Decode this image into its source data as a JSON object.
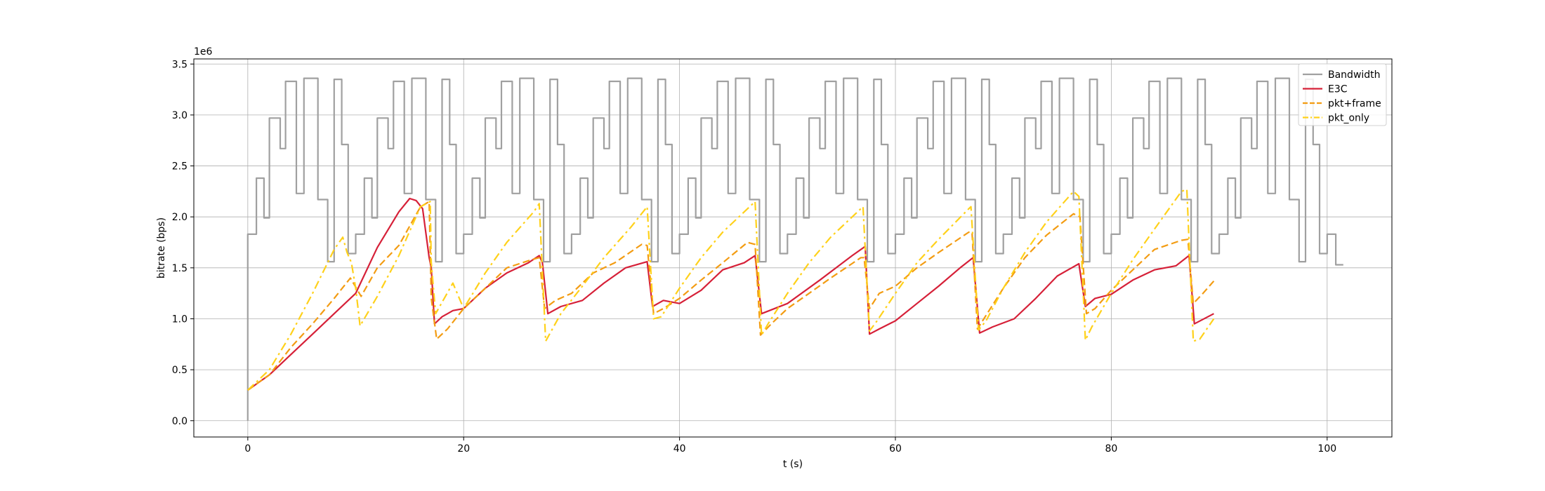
{
  "chart_data": {
    "type": "line",
    "xlabel": "t (s)",
    "ylabel": "bitrate (bps)",
    "y_offset_label": "1e6",
    "xlim": [
      -5,
      106
    ],
    "ylim": [
      -0.16,
      3.55
    ],
    "xticks": [
      0,
      20,
      40,
      60,
      80,
      100
    ],
    "yticks": [
      0.0,
      0.5,
      1.0,
      1.5,
      2.0,
      2.5,
      3.0,
      3.5
    ],
    "xtick_labels": [
      "0",
      "20",
      "40",
      "60",
      "80",
      "100"
    ],
    "ytick_labels": [
      "0.0",
      "0.5",
      "1.0",
      "1.5",
      "2.0",
      "2.5",
      "3.0",
      "3.5"
    ],
    "grid": true,
    "legend_position": "top-right",
    "series": [
      {
        "name": "Bandwidth",
        "color": "#a0a0a0",
        "style": "solid",
        "step": true,
        "pattern_period": 10,
        "pattern_times": [
          0,
          0.8,
          1.5,
          2.0,
          3.0,
          3.5,
          4.5,
          5.2,
          6.5,
          7.4,
          8.0,
          8.7,
          9.3
        ],
        "pattern_values": [
          1.83,
          2.38,
          1.99,
          2.97,
          2.67,
          3.33,
          2.23,
          3.36,
          2.17,
          1.56,
          3.35,
          2.71,
          1.64
        ],
        "end_time": 100.8,
        "end_value": 1.53
      },
      {
        "name": "E3C",
        "color": "#d62038",
        "style": "solid",
        "x": [
          0,
          2,
          4,
          6,
          8,
          10,
          12,
          14,
          15.0,
          15.6,
          16.2,
          16.8,
          17.0,
          17.3,
          18,
          19,
          20,
          22,
          24,
          26,
          27.0,
          27.3,
          27.8,
          29,
          31,
          33,
          35,
          37.0,
          37.5,
          38.5,
          40,
          42,
          44,
          46,
          47.0,
          47.6,
          50,
          53,
          56,
          57.2,
          57.6,
          58.5,
          60,
          62,
          64,
          66,
          67.2,
          67.8,
          69,
          71,
          73,
          75,
          77.0,
          77.6,
          78.5,
          80,
          82,
          84,
          86,
          87.2,
          87.7,
          89.5
        ],
        "values": [
          0.3,
          0.45,
          0.65,
          0.85,
          1.05,
          1.25,
          1.7,
          2.05,
          2.18,
          2.16,
          2.08,
          1.6,
          1.5,
          0.95,
          1.02,
          1.08,
          1.1,
          1.3,
          1.45,
          1.55,
          1.62,
          1.55,
          1.05,
          1.12,
          1.18,
          1.35,
          1.5,
          1.56,
          1.12,
          1.18,
          1.15,
          1.28,
          1.48,
          1.55,
          1.62,
          1.05,
          1.15,
          1.38,
          1.62,
          1.71,
          0.85,
          0.9,
          0.98,
          1.15,
          1.32,
          1.5,
          1.6,
          0.86,
          0.92,
          1.0,
          1.2,
          1.42,
          1.54,
          1.12,
          1.2,
          1.24,
          1.38,
          1.48,
          1.52,
          1.62,
          0.95,
          1.05
        ]
      },
      {
        "name": "pkt+frame",
        "color": "#f39c12",
        "style": "dashed",
        "x": [
          0,
          2,
          4,
          6,
          8,
          9.5,
          10.5,
          12,
          14,
          16.0,
          16.8,
          17.0,
          17.5,
          18.5,
          20,
          22,
          24,
          26.3,
          27.0,
          27.5,
          28.5,
          30,
          32,
          34,
          36.5,
          37.0,
          37.6,
          38.5,
          40,
          42,
          44,
          46.3,
          47.0,
          47.5,
          48.5,
          50,
          52,
          54,
          56.8,
          57.1,
          57.6,
          58.5,
          60,
          62,
          64,
          66.8,
          67.1,
          67.6,
          68.5,
          70,
          72,
          74,
          76.5,
          77.1,
          77.7,
          78.5,
          80,
          82,
          84,
          86.5,
          87.1,
          87.6,
          88.5,
          89.5
        ],
        "values": [
          0.3,
          0.45,
          0.72,
          0.95,
          1.2,
          1.4,
          1.22,
          1.5,
          1.72,
          2.1,
          2.15,
          1.2,
          0.8,
          0.9,
          1.1,
          1.3,
          1.5,
          1.58,
          1.6,
          1.1,
          1.18,
          1.25,
          1.45,
          1.55,
          1.73,
          1.72,
          1.05,
          1.1,
          1.2,
          1.38,
          1.55,
          1.75,
          1.73,
          0.84,
          0.95,
          1.1,
          1.25,
          1.4,
          1.6,
          1.6,
          1.1,
          1.25,
          1.32,
          1.5,
          1.65,
          1.85,
          1.85,
          0.9,
          1.05,
          1.3,
          1.6,
          1.82,
          2.03,
          2.0,
          1.05,
          1.1,
          1.28,
          1.48,
          1.68,
          1.77,
          1.78,
          1.15,
          1.25,
          1.37
        ]
      },
      {
        "name": "pkt_only",
        "color": "#ffd11a",
        "style": "dashdot",
        "x": [
          0,
          2,
          4,
          6,
          8,
          8.8,
          9.2,
          9.6,
          10.0,
          10.4,
          12,
          14,
          16.0,
          16.9,
          17.0,
          17.4,
          19,
          20,
          22,
          24,
          26.5,
          27.0,
          27.6,
          29,
          31,
          33,
          35.5,
          37.0,
          37.6,
          38.3,
          40,
          42,
          44,
          46.5,
          47.0,
          47.6,
          48.2,
          50,
          52,
          54,
          56.5,
          57.0,
          57.6,
          58.3,
          60,
          62,
          64,
          66.8,
          67.0,
          67.7,
          68.4,
          70,
          72,
          74,
          76.5,
          77.0,
          77.6,
          78.2,
          80,
          82,
          84,
          86.5,
          87.0,
          87.6,
          88.2,
          89.5
        ],
        "values": [
          0.3,
          0.5,
          0.85,
          1.25,
          1.68,
          1.8,
          1.65,
          1.55,
          1.3,
          0.93,
          1.22,
          1.62,
          2.1,
          2.15,
          1.55,
          1.05,
          1.35,
          1.1,
          1.45,
          1.75,
          2.05,
          2.13,
          0.78,
          1.05,
          1.32,
          1.6,
          1.9,
          2.1,
          1.0,
          1.02,
          1.3,
          1.6,
          1.85,
          2.1,
          2.15,
          0.84,
          0.95,
          1.25,
          1.55,
          1.8,
          2.05,
          2.1,
          0.88,
          0.98,
          1.25,
          1.55,
          1.78,
          2.08,
          2.1,
          0.89,
          0.98,
          1.3,
          1.65,
          1.95,
          2.25,
          2.2,
          0.79,
          0.92,
          1.25,
          1.58,
          1.88,
          2.25,
          2.27,
          0.78,
          0.8,
          1.0
        ]
      }
    ]
  }
}
